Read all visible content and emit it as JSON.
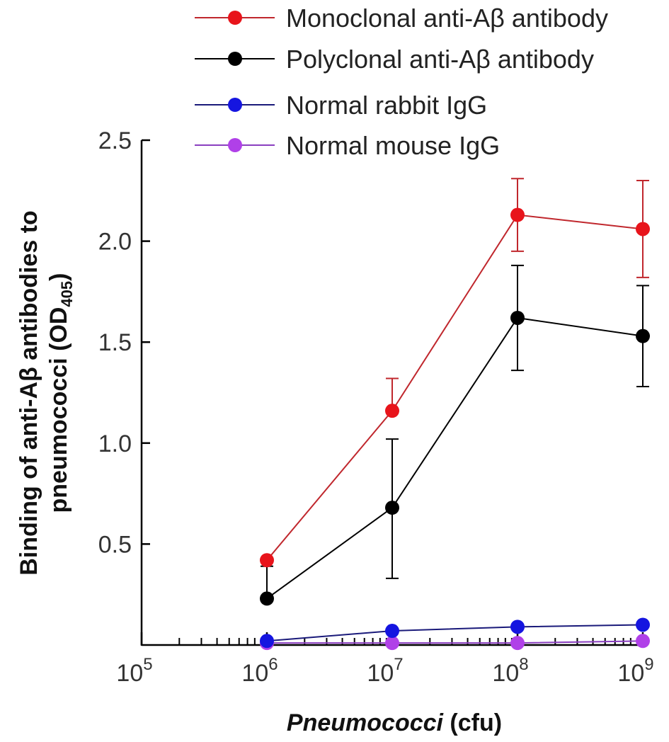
{
  "chart_data": {
    "type": "line",
    "title": "",
    "xlabel_italic": "Pneumococci",
    "xlabel_rest": " (cfu)",
    "ylabel_line1": "Binding of anti-Aβ antibodies to",
    "ylabel_line2_main": "pneumococci (OD",
    "ylabel_line2_sub": "405",
    "ylabel_line2_end": ")",
    "x_scale": "log10",
    "xlim_exponents": [
      5,
      9
    ],
    "ylim": [
      0,
      2.5
    ],
    "x_ticks": [
      {
        "base": "10",
        "exp": "5"
      },
      {
        "base": "10",
        "exp": "6"
      },
      {
        "base": "10",
        "exp": "7"
      },
      {
        "base": "10",
        "exp": "8"
      },
      {
        "base": "10",
        "exp": "9"
      }
    ],
    "y_ticks": [
      "0.5",
      "1.0",
      "1.5",
      "2.0",
      "2.5"
    ],
    "x_exponents": [
      6,
      7,
      8,
      9
    ],
    "series": [
      {
        "name": "Monoclonal anti-Aβ antibody",
        "color": "#c0272d",
        "marker": "#e8141b",
        "values": [
          0.42,
          1.16,
          2.13,
          2.06
        ],
        "err_up": [
          0.0,
          0.16,
          0.18,
          0.24
        ],
        "err_down": [
          0.0,
          0.0,
          0.18,
          0.24
        ]
      },
      {
        "name": "Polyclonal anti-Aβ antibody",
        "color": "#000000",
        "marker": "#000000",
        "values": [
          0.23,
          0.68,
          1.62,
          1.53
        ],
        "err_up": [
          0.16,
          0.34,
          0.26,
          0.25
        ],
        "err_down": [
          0.0,
          0.35,
          0.26,
          0.25
        ]
      },
      {
        "name": "Normal rabbit IgG",
        "color": "#1a1a7a",
        "marker": "#1515e0",
        "values": [
          0.02,
          0.07,
          0.09,
          0.1
        ],
        "err_up": [
          0,
          0,
          0,
          0
        ],
        "err_down": [
          0,
          0,
          0,
          0
        ]
      },
      {
        "name": "Normal mouse IgG",
        "color": "#8a3fc0",
        "marker": "#b040e8",
        "values": [
          0.01,
          0.01,
          0.01,
          0.02
        ],
        "err_up": [
          0,
          0,
          0,
          0
        ],
        "err_down": [
          0,
          0,
          0,
          0
        ]
      }
    ]
  }
}
